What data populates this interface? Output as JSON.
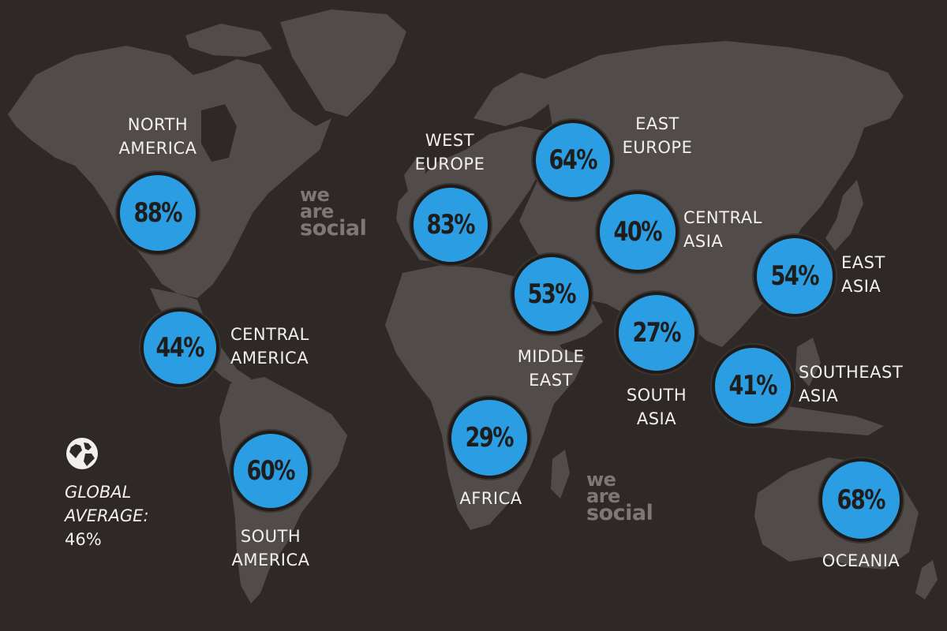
{
  "colors": {
    "background": "#2e2927",
    "land": "#514c49",
    "bubble": "#2b9ee3",
    "text": "#f2f0ee"
  },
  "watermark": [
    "we",
    "are",
    "social"
  ],
  "global": {
    "icon": "globe-icon",
    "label": "GLOBAL\nAVERAGE:",
    "value": "46%"
  },
  "regions": [
    {
      "id": "north-america",
      "name": "NORTH\nAMERICA",
      "value": "88%"
    },
    {
      "id": "central-america",
      "name": "CENTRAL\nAMERICA",
      "value": "44%"
    },
    {
      "id": "south-america",
      "name": "SOUTH\nAMERICA",
      "value": "60%"
    },
    {
      "id": "west-europe",
      "name": "WEST\nEUROPE",
      "value": "83%"
    },
    {
      "id": "east-europe",
      "name": "EAST\nEUROPE",
      "value": "64%"
    },
    {
      "id": "central-asia",
      "name": "CENTRAL\nASIA",
      "value": "40%"
    },
    {
      "id": "middle-east",
      "name": "MIDDLE\nEAST",
      "value": "53%"
    },
    {
      "id": "south-asia",
      "name": "SOUTH\nASIA",
      "value": "27%"
    },
    {
      "id": "east-asia",
      "name": "EAST\nASIA",
      "value": "54%"
    },
    {
      "id": "southeast-asia",
      "name": "SOUTHEAST\nASIA",
      "value": "41%"
    },
    {
      "id": "africa",
      "name": "AFRICA",
      "value": "29%"
    },
    {
      "id": "oceania",
      "name": "OCEANIA",
      "value": "68%"
    }
  ]
}
